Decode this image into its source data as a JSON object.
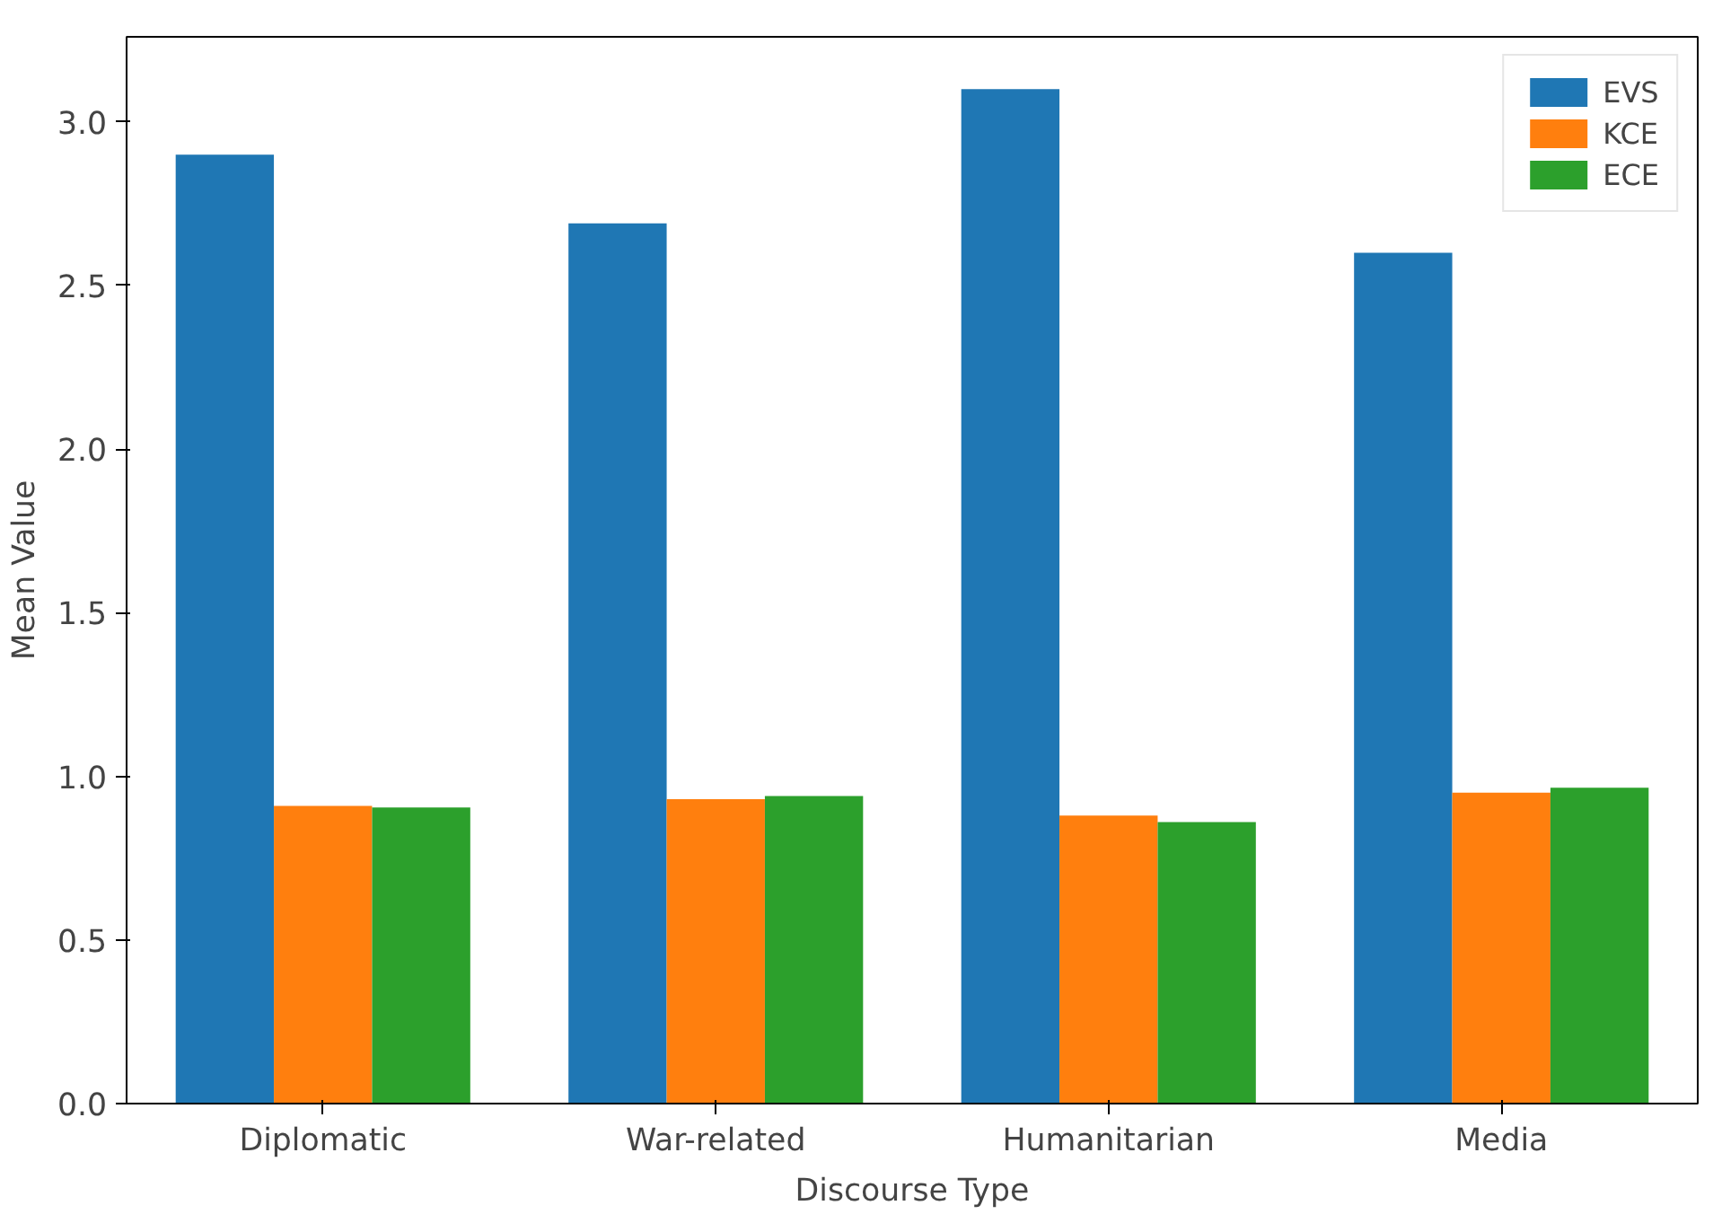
{
  "chart_data": {
    "type": "bar",
    "categories": [
      "Diplomatic",
      "War-related",
      "Humanitarian",
      "Media"
    ],
    "series": [
      {
        "name": "EVS",
        "color": "#1f77b4",
        "values": [
          2.9,
          2.69,
          3.1,
          2.6
        ]
      },
      {
        "name": "KCE",
        "color": "#ff7f0e",
        "values": [
          0.91,
          0.93,
          0.88,
          0.95
        ]
      },
      {
        "name": "ECE",
        "color": "#2ca02c",
        "values": [
          0.905,
          0.94,
          0.86,
          0.965
        ]
      }
    ],
    "xlabel": "Discourse Type",
    "ylabel": "Mean Value",
    "ylim": [
      0,
      3.26
    ],
    "yticks": [
      {
        "value": 0,
        "label": "0.0"
      },
      {
        "value": 0.5,
        "label": "0.5"
      },
      {
        "value": 1,
        "label": "1.0"
      },
      {
        "value": 1.5,
        "label": "1.5"
      },
      {
        "value": 2,
        "label": "2.0"
      },
      {
        "value": 2.5,
        "label": "2.5"
      },
      {
        "value": 3,
        "label": "3.0"
      }
    ],
    "grid": false,
    "legend": "top right"
  }
}
